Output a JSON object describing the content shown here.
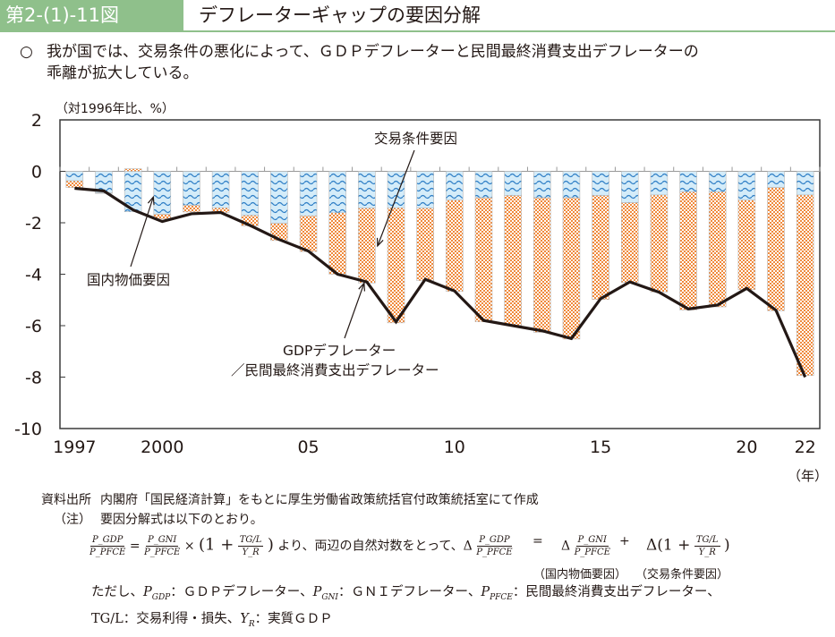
{
  "header": {
    "figure_number": "第2-(1)-11図",
    "title": "デフレーターギャップの要因分解"
  },
  "lead": {
    "bullet": "○",
    "line1": "我が国では、交易条件の悪化によって、ＧＤＰデフレーターと民間最終消費支出デフレーターの",
    "line2": "乖離が拡大している。"
  },
  "chart_data": {
    "type": "bar",
    "subtype": "stacked-bar-with-line",
    "unit_label": "（対1996年比、%）",
    "x_unit_label": "（年）",
    "categories": [
      "1997",
      "1998",
      "1999",
      "2000",
      "2001",
      "2002",
      "2003",
      "2004",
      "2005",
      "2006",
      "2007",
      "2008",
      "2009",
      "2010",
      "2011",
      "2012",
      "2013",
      "2014",
      "2015",
      "2016",
      "2017",
      "2018",
      "2019",
      "2020",
      "2021",
      "2022"
    ],
    "x_tick_labels": [
      {
        "category": "1997",
        "label": "1997"
      },
      {
        "category": "2000",
        "label": "2000"
      },
      {
        "category": "2005",
        "label": "05"
      },
      {
        "category": "2010",
        "label": "10"
      },
      {
        "category": "2015",
        "label": "15"
      },
      {
        "category": "2020",
        "label": "20"
      },
      {
        "category": "2022",
        "label": "22"
      }
    ],
    "y_ticks": [
      2,
      0,
      -2,
      -4,
      -6,
      -8,
      -10
    ],
    "ylim": [
      -10,
      2
    ],
    "grid": false,
    "series": [
      {
        "name": "国内物価要因",
        "kind": "bar",
        "color": "#5aa9e0",
        "fill": "#d4ecf9",
        "pattern": "wave",
        "values": [
          -0.37,
          -0.84,
          -1.57,
          -1.67,
          -1.32,
          -1.42,
          -1.71,
          -2.02,
          -1.73,
          -1.61,
          -1.43,
          -1.42,
          -1.43,
          -1.12,
          -1.03,
          -0.94,
          -1.03,
          -1.03,
          -0.94,
          -1.22,
          -0.92,
          -0.8,
          -0.8,
          -1.12,
          -0.63,
          -0.92
        ]
      },
      {
        "name": "交易条件要因",
        "kind": "bar",
        "color": "#f08a3c",
        "fill": "#fde3cf",
        "pattern": "checker",
        "values": [
          -0.26,
          -0.02,
          0.1,
          -0.18,
          -0.26,
          -0.18,
          -0.41,
          -0.67,
          -1.39,
          -2.39,
          -2.91,
          -4.47,
          -2.82,
          -3.55,
          -4.82,
          -5.05,
          -5.23,
          -5.49,
          -4.04,
          -3.1,
          -3.77,
          -4.59,
          -4.47,
          -3.48,
          -4.79,
          -7.02
        ]
      },
      {
        "name": "GDPデフレーター／民間最終消費支出デフレーター",
        "kind": "line",
        "color": "#231815",
        "values": [
          -0.66,
          -0.76,
          -1.5,
          -1.95,
          -1.65,
          -1.6,
          -2.1,
          -2.65,
          -3.1,
          -4.0,
          -4.3,
          -5.85,
          -4.2,
          -4.65,
          -5.8,
          -6.0,
          -6.2,
          -6.5,
          -4.95,
          -4.3,
          -4.7,
          -5.35,
          -5.2,
          -4.55,
          -5.4,
          -8.0
        ]
      }
    ],
    "annotations": [
      {
        "text": "交易条件要因",
        "points_to": "2007"
      },
      {
        "text": "国内物価要因",
        "points_to": "2000"
      },
      {
        "text": "GDPデフレーター",
        "points_to": "2007"
      },
      {
        "text": "／民間最終消費支出デフレーター",
        "points_to": "2007"
      }
    ]
  },
  "notes": {
    "source_label": "資料出所",
    "source_text": "内閣府「国民経済計算」をもとに厚生労働省政策統括官付政策統括室にて作成",
    "note_label": "（注）",
    "note_text": "要因分解式は以下のとおり。",
    "formula": {
      "lhs_num": "P_GDP",
      "lhs_den": "P_PFCE",
      "eq": "=",
      "r1_num": "P_GNI",
      "r1_den": "P_PFCE",
      "times": "×",
      "paren_open": "(1 +",
      "tg_num": "TG/L",
      "tg_den": "Y_R",
      "paren_close": ")",
      "middle_text": "より、両辺の自然対数をとって、Δ",
      "eq2": "=",
      "delta": "Δ",
      "plus": "+",
      "delta2": "Δ(1 +",
      "domestic_label": "（国内物価要因）",
      "tot_label": "（交易条件要因）"
    },
    "defs_line1": "ただし、P_GDP：ＧＤＰデフレーター、P_GNI：ＧＮＩデフレーター、P_PFCE：民間最終消費支出デフレーター、",
    "defs_line2": "TG/L：交易利得・損失、Y_R：実質ＧＤＰ",
    "defs": {
      "intro": "ただし、",
      "p_gdp": "P",
      "p_gdp_sub": "GDP",
      "p_gdp_desc": "：ＧＤＰデフレーター、",
      "p_gni": "P",
      "p_gni_sub": "GNI",
      "p_gni_desc": "：ＧＮＩデフレーター、",
      "p_pfce": "P",
      "p_pfce_sub": "PFCE",
      "p_pfce_desc": "：民間最終消費支出デフレーター、",
      "tgl": "TG/L：交易利得・損失、",
      "yr": "Y",
      "yr_sub": "R",
      "yr_desc": "：実質ＧＤＰ"
    }
  }
}
